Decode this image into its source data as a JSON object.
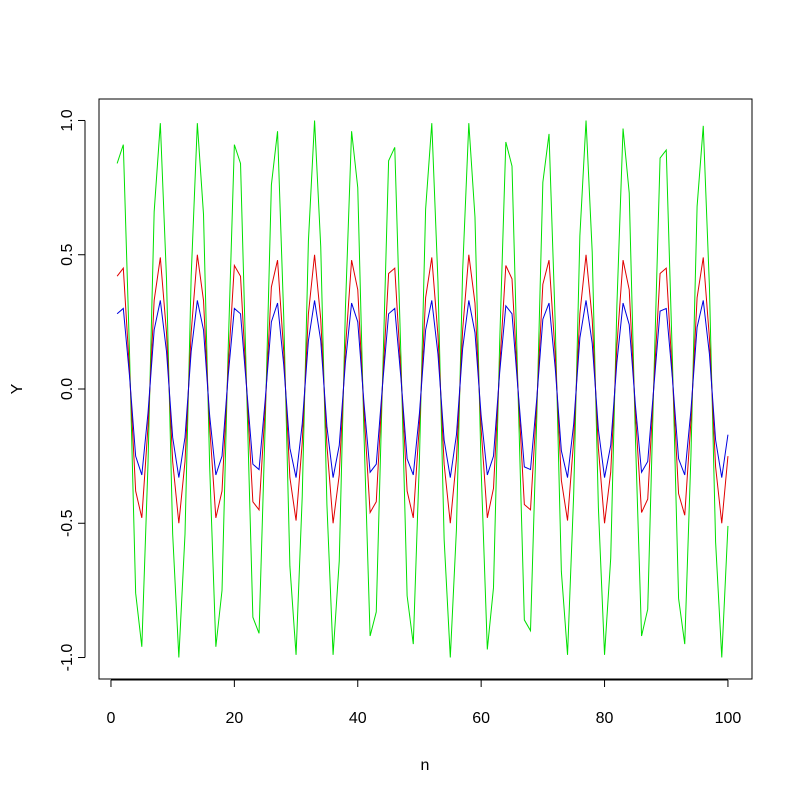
{
  "chart_data": {
    "type": "line",
    "xlabel": "n",
    "ylabel": "Y",
    "x": [
      1,
      2,
      3,
      4,
      5,
      6,
      7,
      8,
      9,
      10,
      11,
      12,
      13,
      14,
      15,
      16,
      17,
      18,
      19,
      20,
      21,
      22,
      23,
      24,
      25,
      26,
      27,
      28,
      29,
      30,
      31,
      32,
      33,
      34,
      35,
      36,
      37,
      38,
      39,
      40,
      41,
      42,
      43,
      44,
      45,
      46,
      47,
      48,
      49,
      50,
      51,
      52,
      53,
      54,
      55,
      56,
      57,
      58,
      59,
      60,
      61,
      62,
      63,
      64,
      65,
      66,
      67,
      68,
      69,
      70,
      71,
      72,
      73,
      74,
      75,
      76,
      77,
      78,
      79,
      80,
      81,
      82,
      83,
      84,
      85,
      86,
      87,
      88,
      89,
      90,
      91,
      92,
      93,
      94,
      95,
      96,
      97,
      98,
      99,
      100
    ],
    "series": [
      {
        "color": "#00e000",
        "values": [
          0.84,
          0.91,
          0.14,
          -0.76,
          -0.96,
          -0.28,
          0.66,
          0.99,
          0.41,
          -0.54,
          -1.0,
          -0.54,
          0.42,
          0.99,
          0.65,
          -0.29,
          -0.96,
          -0.75,
          0.15,
          0.91,
          0.84,
          -0.01,
          -0.85,
          -0.91,
          -0.13,
          0.76,
          0.96,
          0.27,
          -0.66,
          -0.99,
          -0.4,
          0.55,
          1.0,
          0.53,
          -0.43,
          -0.99,
          -0.64,
          0.3,
          0.96,
          0.75,
          -0.16,
          -0.92,
          -0.83,
          0.02,
          0.85,
          0.9,
          0.12,
          -0.77,
          -0.95,
          -0.26,
          0.67,
          0.99,
          0.4,
          -0.56,
          -1.0,
          -0.52,
          0.44,
          0.99,
          0.64,
          -0.3,
          -0.97,
          -0.74,
          0.17,
          0.92,
          0.83,
          -0.03,
          -0.86,
          -0.9,
          -0.12,
          0.77,
          0.95,
          0.25,
          -0.68,
          -0.99,
          -0.39,
          0.57,
          1.0,
          0.51,
          -0.44,
          -0.99,
          -0.63,
          0.31,
          0.97,
          0.73,
          -0.18,
          -0.92,
          -0.82,
          0.04,
          0.86,
          0.89,
          0.11,
          -0.78,
          -0.95,
          -0.25,
          0.68,
          0.98,
          0.38,
          -0.57,
          -1.0,
          -0.51
        ]
      },
      {
        "color": "#e00000",
        "values": [
          0.42,
          0.45,
          0.07,
          -0.38,
          -0.48,
          -0.14,
          0.33,
          0.49,
          0.21,
          -0.27,
          -0.5,
          -0.27,
          0.21,
          0.5,
          0.33,
          -0.14,
          -0.48,
          -0.38,
          0.08,
          0.46,
          0.42,
          0.0,
          -0.42,
          -0.45,
          -0.07,
          0.38,
          0.48,
          0.14,
          -0.33,
          -0.49,
          -0.2,
          0.28,
          0.5,
          0.26,
          -0.21,
          -0.5,
          -0.32,
          0.15,
          0.48,
          0.37,
          -0.08,
          -0.46,
          -0.42,
          0.01,
          0.43,
          0.45,
          0.06,
          -0.38,
          -0.48,
          -0.13,
          0.34,
          0.49,
          0.2,
          -0.28,
          -0.5,
          -0.26,
          0.22,
          0.5,
          0.32,
          -0.15,
          -0.48,
          -0.37,
          0.08,
          0.46,
          0.41,
          -0.01,
          -0.43,
          -0.45,
          -0.06,
          0.39,
          0.48,
          0.13,
          -0.34,
          -0.49,
          -0.19,
          0.28,
          0.5,
          0.26,
          -0.22,
          -0.5,
          -0.31,
          0.16,
          0.48,
          0.37,
          -0.09,
          -0.46,
          -0.41,
          0.02,
          0.43,
          0.45,
          0.05,
          -0.39,
          -0.47,
          -0.12,
          0.34,
          0.49,
          0.19,
          -0.29,
          -0.5,
          -0.25
        ]
      },
      {
        "color": "#0000e0",
        "values": [
          0.28,
          0.3,
          0.05,
          -0.25,
          -0.32,
          -0.09,
          0.22,
          0.33,
          0.14,
          -0.18,
          -0.33,
          -0.18,
          0.14,
          0.33,
          0.22,
          -0.1,
          -0.32,
          -0.25,
          0.05,
          0.3,
          0.28,
          0.0,
          -0.28,
          -0.3,
          -0.04,
          0.25,
          0.32,
          0.09,
          -0.22,
          -0.33,
          -0.13,
          0.18,
          0.33,
          0.18,
          -0.14,
          -0.33,
          -0.21,
          0.1,
          0.32,
          0.25,
          -0.05,
          -0.31,
          -0.28,
          0.01,
          0.28,
          0.3,
          0.04,
          -0.26,
          -0.32,
          -0.09,
          0.22,
          0.33,
          0.13,
          -0.19,
          -0.33,
          -0.17,
          0.15,
          0.33,
          0.21,
          -0.1,
          -0.32,
          -0.25,
          0.06,
          0.31,
          0.28,
          -0.01,
          -0.29,
          -0.3,
          -0.04,
          0.26,
          0.32,
          0.08,
          -0.23,
          -0.33,
          -0.13,
          0.19,
          0.33,
          0.17,
          -0.15,
          -0.33,
          -0.21,
          0.1,
          0.32,
          0.24,
          -0.06,
          -0.31,
          -0.27,
          0.01,
          0.29,
          0.3,
          0.04,
          -0.26,
          -0.32,
          -0.08,
          0.23,
          0.33,
          0.13,
          -0.19,
          -0.33,
          -0.17
        ]
      }
    ],
    "xlim": [
      -1.94,
      103.9
    ],
    "ylim": [
      -1.08,
      1.08
    ],
    "xticks": [
      0,
      20,
      40,
      60,
      80,
      100
    ],
    "yticks": [
      {
        "value": -1,
        "label": "-1.0"
      },
      {
        "value": -0.5,
        "label": "-0.5"
      },
      {
        "value": 0,
        "label": "0.0"
      },
      {
        "value": 0.5,
        "label": "0.5"
      },
      {
        "value": 1,
        "label": "1.0"
      }
    ]
  }
}
